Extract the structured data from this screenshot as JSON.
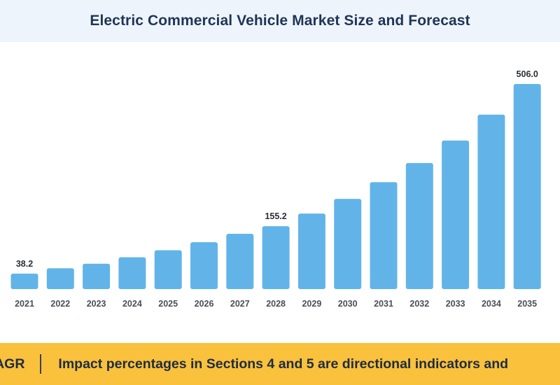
{
  "header": {
    "title": "Electric Commercial Vehicle Market Size and Forecast"
  },
  "banner": {
    "label": "CAGR",
    "text": "Impact percentages in Sections 4 and 5 are directional indicators and"
  },
  "colors": {
    "bar": "#62b4e8",
    "title_band": "#eef4fb",
    "banner": "#f9c13c",
    "title_text": "#1f3556"
  },
  "chart_data": {
    "type": "bar",
    "title": "Electric Commercial Vehicle Market Size and Forecast",
    "xlabel": "",
    "ylabel": "",
    "grid": false,
    "categories": [
      "2021",
      "2022",
      "2023",
      "2024",
      "2025",
      "2026",
      "2027",
      "2028",
      "2029",
      "2030",
      "2031",
      "2032",
      "2033",
      "2034",
      "2035"
    ],
    "values": [
      38.2,
      51.3,
      62.7,
      78.5,
      95.8,
      115.6,
      136.4,
      155.2,
      186.2,
      222.5,
      263.7,
      311.0,
      366.5,
      430.5,
      506.0
    ],
    "data_labels": [
      {
        "index": 0,
        "text": "38.2"
      },
      {
        "index": 7,
        "text": "155.2"
      },
      {
        "index": 14,
        "text": "506.0"
      }
    ],
    "ylim": [
      0,
      506.0
    ]
  }
}
